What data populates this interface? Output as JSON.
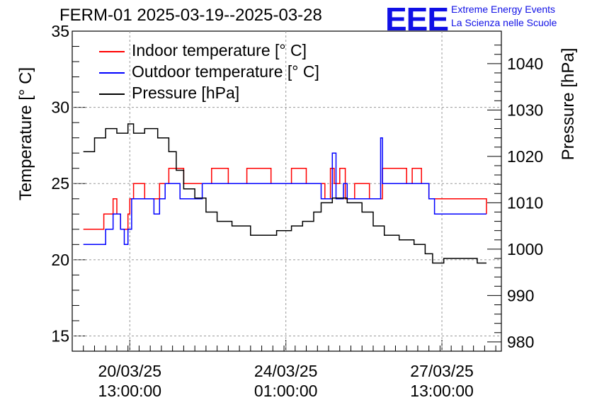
{
  "chart_data": {
    "type": "line",
    "title": "FERM-01 2025-03-19--2025-03-28",
    "ylabel_left": "Temperature [° C]",
    "ylabel_right": "Pressure [hPa]",
    "ylim_left": [
      14,
      35
    ],
    "ylim_right": [
      978,
      1047
    ],
    "yticks_left": [
      15,
      20,
      25,
      30,
      35
    ],
    "yticks_right": [
      980,
      990,
      1000,
      1010,
      1020,
      1030,
      1040
    ],
    "xlim": [
      "2025-03-19 06:00",
      "2025-03-28 21:00"
    ],
    "xticks": [
      {
        "date": "20/03/25",
        "time": "13:00:00",
        "t": "2025-03-20 13:00"
      },
      {
        "date": "24/03/25",
        "time": "01:00:00",
        "t": "2025-03-24 01:00"
      },
      {
        "date": "27/03/25",
        "time": "13:00:00",
        "t": "2025-03-27 13:00"
      }
    ],
    "grid": true,
    "legend": "top-left",
    "series": [
      {
        "name": "Indoor temperature [° C]",
        "color": "#ff0000",
        "axis": "left",
        "points": [
          [
            "2025-03-19 12:00",
            22
          ],
          [
            "2025-03-19 22:00",
            22
          ],
          [
            "2025-03-19 23:00",
            23
          ],
          [
            "2025-03-20 04:00",
            24
          ],
          [
            "2025-03-20 06:00",
            23
          ],
          [
            "2025-03-20 08:00",
            22
          ],
          [
            "2025-03-20 12:00",
            23
          ],
          [
            "2025-03-20 13:00",
            24
          ],
          [
            "2025-03-20 15:00",
            25
          ],
          [
            "2025-03-20 21:00",
            24
          ],
          [
            "2025-03-21 05:00",
            25
          ],
          [
            "2025-03-21 10:00",
            26
          ],
          [
            "2025-03-21 18:00",
            25
          ],
          [
            "2025-03-22 07:00",
            25
          ],
          [
            "2025-03-22 09:00",
            26
          ],
          [
            "2025-03-22 18:00",
            25
          ],
          [
            "2025-03-23 04:00",
            26
          ],
          [
            "2025-03-23 12:00",
            26
          ],
          [
            "2025-03-23 17:00",
            25
          ],
          [
            "2025-03-24 04:00",
            26
          ],
          [
            "2025-03-24 12:00",
            25
          ],
          [
            "2025-03-24 22:00",
            24
          ],
          [
            "2025-03-25 01:00",
            26
          ],
          [
            "2025-03-25 03:00",
            25
          ],
          [
            "2025-03-25 06:00",
            26
          ],
          [
            "2025-03-25 09:00",
            24
          ],
          [
            "2025-03-25 14:00",
            25
          ],
          [
            "2025-03-25 22:00",
            24
          ],
          [
            "2025-03-26 05:00",
            26
          ],
          [
            "2025-03-26 18:00",
            25
          ],
          [
            "2025-03-26 21:00",
            26
          ],
          [
            "2025-03-27 02:00",
            25
          ],
          [
            "2025-03-27 06:00",
            24
          ],
          [
            "2025-03-28 12:00",
            24
          ],
          [
            "2025-03-28 13:00",
            23
          ]
        ]
      },
      {
        "name": "Outdoor temperature [° C]",
        "color": "#0000ff",
        "axis": "left",
        "points": [
          [
            "2025-03-19 12:00",
            21
          ],
          [
            "2025-03-19 22:00",
            21
          ],
          [
            "2025-03-20 00:00",
            22
          ],
          [
            "2025-03-20 04:00",
            23
          ],
          [
            "2025-03-20 08:00",
            22
          ],
          [
            "2025-03-20 10:00",
            21
          ],
          [
            "2025-03-20 12:00",
            22
          ],
          [
            "2025-03-20 14:00",
            24
          ],
          [
            "2025-03-20 22:00",
            24
          ],
          [
            "2025-03-21 02:00",
            23
          ],
          [
            "2025-03-21 05:00",
            24
          ],
          [
            "2025-03-21 08:00",
            25
          ],
          [
            "2025-03-21 16:00",
            24
          ],
          [
            "2025-03-22 00:00",
            24
          ],
          [
            "2025-03-22 04:00",
            25
          ],
          [
            "2025-03-23 20:00",
            25
          ],
          [
            "2025-03-24 18:00",
            25
          ],
          [
            "2025-03-24 20:00",
            24
          ],
          [
            "2025-03-25 02:00",
            27
          ],
          [
            "2025-03-25 04:00",
            24
          ],
          [
            "2025-03-25 08:00",
            25
          ],
          [
            "2025-03-25 10:00",
            24
          ],
          [
            "2025-03-26 02:00",
            24
          ],
          [
            "2025-03-26 04:00",
            28
          ],
          [
            "2025-03-26 05:00",
            25
          ],
          [
            "2025-03-27 03:00",
            25
          ],
          [
            "2025-03-27 06:00",
            24
          ],
          [
            "2025-03-27 09:00",
            23
          ],
          [
            "2025-03-28 13:00",
            23
          ]
        ]
      },
      {
        "name": "Pressure [hPa]",
        "color": "#000000",
        "axis": "right",
        "points": [
          [
            "2025-03-19 12:00",
            1021
          ],
          [
            "2025-03-19 18:00",
            1024
          ],
          [
            "2025-03-20 00:00",
            1026
          ],
          [
            "2025-03-20 06:00",
            1025
          ],
          [
            "2025-03-20 12:00",
            1027
          ],
          [
            "2025-03-20 15:00",
            1025
          ],
          [
            "2025-03-20 21:00",
            1026
          ],
          [
            "2025-03-21 04:00",
            1024
          ],
          [
            "2025-03-21 10:00",
            1021
          ],
          [
            "2025-03-21 14:00",
            1017
          ],
          [
            "2025-03-21 18:00",
            1013
          ],
          [
            "2025-03-22 00:00",
            1011
          ],
          [
            "2025-03-22 06:00",
            1008
          ],
          [
            "2025-03-22 12:00",
            1006
          ],
          [
            "2025-03-22 20:00",
            1005
          ],
          [
            "2025-03-23 06:00",
            1003
          ],
          [
            "2025-03-23 14:00",
            1003
          ],
          [
            "2025-03-23 20:00",
            1004
          ],
          [
            "2025-03-24 04:00",
            1005
          ],
          [
            "2025-03-24 10:00",
            1006
          ],
          [
            "2025-03-24 16:00",
            1008
          ],
          [
            "2025-03-24 20:00",
            1010
          ],
          [
            "2025-03-25 02:00",
            1011
          ],
          [
            "2025-03-25 10:00",
            1010
          ],
          [
            "2025-03-25 18:00",
            1008
          ],
          [
            "2025-03-26 00:00",
            1005
          ],
          [
            "2025-03-26 06:00",
            1003
          ],
          [
            "2025-03-26 14:00",
            1002
          ],
          [
            "2025-03-26 22:00",
            1001
          ],
          [
            "2025-03-27 04:00",
            999
          ],
          [
            "2025-03-27 08:00",
            997
          ],
          [
            "2025-03-27 14:00",
            998
          ],
          [
            "2025-03-27 20:00",
            998
          ],
          [
            "2025-03-28 02:00",
            998
          ],
          [
            "2025-03-28 08:00",
            997
          ],
          [
            "2025-03-28 13:00",
            997
          ]
        ]
      }
    ]
  },
  "logo": {
    "mark": "EEE",
    "line1": "Extreme Energy Events",
    "line2": "La Scienza nelle Scuole"
  }
}
